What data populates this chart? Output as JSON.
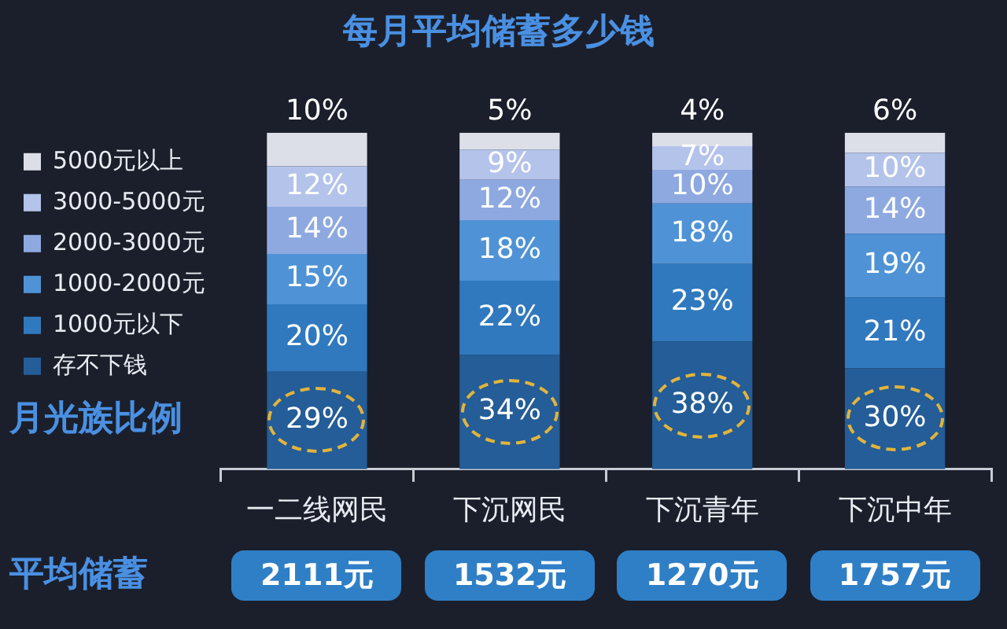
{
  "chart_data": {
    "type": "bar",
    "title": "每月平均储蓄多少钱",
    "stacked": true,
    "legend": "left",
    "grid": false,
    "tick_labels": "x",
    "ylim": [
      0,
      100
    ],
    "categories": [
      "一二线网民",
      "下沉网民",
      "下沉青年",
      "下沉中年"
    ],
    "series": [
      {
        "name": "存不下钱",
        "color": "#245d97",
        "values": [
          29,
          34,
          38,
          30
        ],
        "value_labels": [
          "29%",
          "34%",
          "38%",
          "30%"
        ]
      },
      {
        "name": "1000元以下",
        "color": "#3179be",
        "values": [
          20,
          22,
          23,
          21
        ],
        "value_labels": [
          "20%",
          "22%",
          "23%",
          "21%"
        ]
      },
      {
        "name": "1000-2000元",
        "color": "#4f93d6",
        "values": [
          15,
          18,
          18,
          19
        ],
        "value_labels": [
          "15%",
          "18%",
          "18%",
          "19%"
        ]
      },
      {
        "name": "2000-3000元",
        "color": "#8ea9e0",
        "values": [
          14,
          12,
          10,
          14
        ],
        "value_labels": [
          "14%",
          "12%",
          "10%",
          "14%"
        ]
      },
      {
        "name": "3000-5000元",
        "color": "#b4c3ea",
        "values": [
          12,
          9,
          7,
          10
        ],
        "value_labels": [
          "12%",
          "9%",
          "7%",
          "10%"
        ]
      },
      {
        "name": "5000元以上",
        "color": "#dcdfe8",
        "values": [
          10,
          5,
          4,
          6
        ],
        "value_labels": [
          "10%",
          "5%",
          "4%",
          "6%"
        ]
      }
    ],
    "annotations": [
      "月光族比例",
      "平均储蓄",
      "2111元",
      "1532元",
      "1270元",
      "1757元"
    ]
  }
}
